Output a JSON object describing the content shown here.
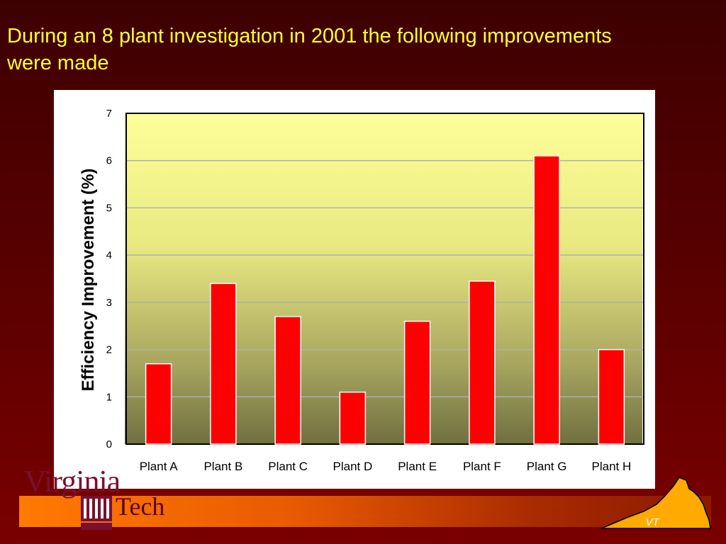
{
  "slide": {
    "title": "During an 8 plant investigation in 2001 the following improvements were made"
  },
  "logo": {
    "virginia": "Virginia",
    "tech": "Tech",
    "state_badge": "VT"
  },
  "colors": {
    "background": "#560000",
    "title": "#ffff33",
    "bar_fill": "#ff0000",
    "plot_top": "#ffff99",
    "plot_bottom": "#707040"
  },
  "chart_data": {
    "type": "bar",
    "categories": [
      "Plant A",
      "Plant B",
      "Plant C",
      "Plant D",
      "Plant E",
      "Plant F",
      "Plant G",
      "Plant H"
    ],
    "values": [
      1.7,
      3.4,
      2.7,
      1.1,
      2.6,
      3.45,
      6.1,
      2.0
    ],
    "xlabel": "",
    "ylabel": "Efficiency Improvement (%)",
    "ylim": [
      0,
      7
    ],
    "yticks": [
      0,
      1,
      2,
      3,
      4,
      5,
      6,
      7
    ],
    "grid": true,
    "legend": "none"
  }
}
